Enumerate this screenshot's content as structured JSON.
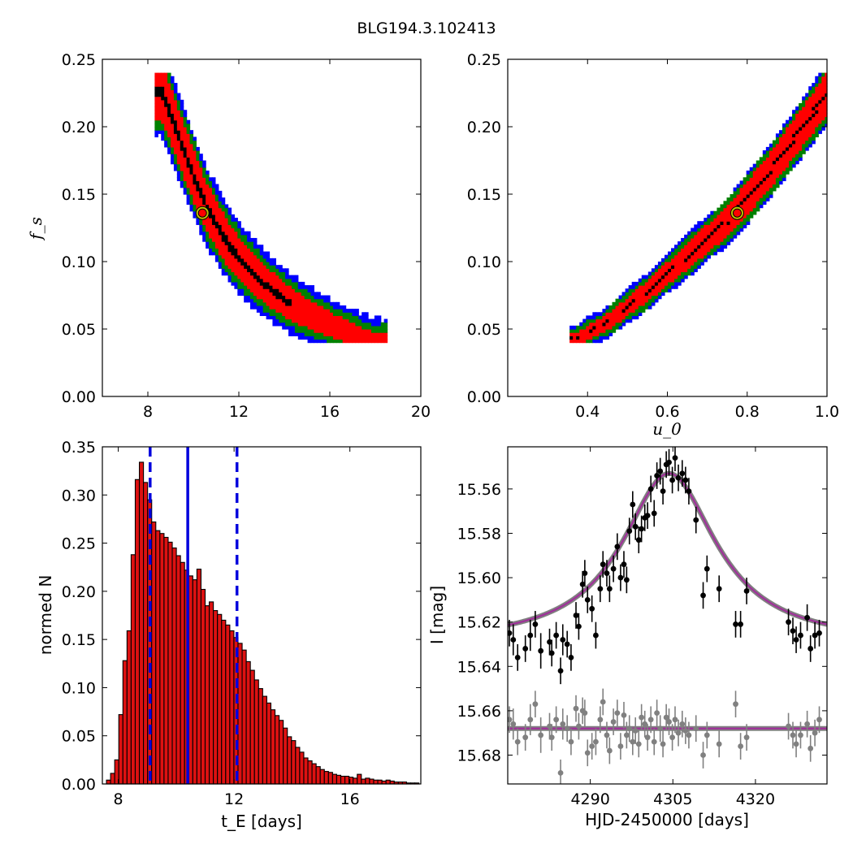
{
  "figure": {
    "title": "BLG194.3.102413"
  },
  "colors": {
    "sigma1": "#000000",
    "sigma2": "#ff0000",
    "sigma3": "#008000",
    "sigma4": "#0000ff",
    "best_fit_marker_edge": "#bfbf00",
    "hist_bar": "#dd1111",
    "hist_lines": "#0000dd",
    "model": "#a0309a",
    "model_band": "#808080",
    "data": "#000000",
    "residuals": "#808080"
  },
  "chart_data": [
    {
      "id": "fs-vs-tE",
      "type": "heatmap",
      "xlim": [
        6,
        20
      ],
      "ylim": [
        0.0,
        0.25
      ],
      "xticks": [
        "8",
        "12",
        "16",
        "20"
      ],
      "yticks": [
        "0.00",
        "0.05",
        "0.10",
        "0.15",
        "0.20",
        "0.25"
      ],
      "xlabel": "",
      "ylabel": "f_s",
      "ridge": {
        "x": [
          8.55,
          9.0,
          9.5,
          10.0,
          10.5,
          11.0,
          11.5,
          12.0,
          13.0,
          14.0,
          15.0,
          16.0,
          17.0,
          17.8
        ],
        "y": [
          0.225,
          0.205,
          0.182,
          0.16,
          0.14,
          0.125,
          0.111,
          0.1,
          0.083,
          0.07,
          0.06,
          0.052,
          0.045,
          0.041
        ]
      },
      "best_fit": {
        "x": 10.4,
        "y": 0.136
      }
    },
    {
      "id": "fs-vs-u0",
      "type": "heatmap",
      "xlim": [
        0.2,
        1.0
      ],
      "ylim": [
        0.0,
        0.25
      ],
      "xticks": [
        "0.4",
        "0.6",
        "0.8",
        "1.0"
      ],
      "yticks": [
        "0.00",
        "0.05",
        "0.10",
        "0.15",
        "0.20",
        "0.25"
      ],
      "xlabel": "u_0",
      "ylabel": "",
      "ridge": {
        "x": [
          0.37,
          0.45,
          0.55,
          0.65,
          0.75,
          0.85,
          0.92,
          1.0
        ],
        "y": [
          0.042,
          0.055,
          0.078,
          0.104,
          0.13,
          0.165,
          0.193,
          0.225
        ]
      },
      "best_fit": {
        "x": 0.775,
        "y": 0.136
      }
    },
    {
      "id": "tE-histogram",
      "type": "bar",
      "xlim": [
        7.45,
        18.45
      ],
      "ylim": [
        0.0,
        0.35
      ],
      "xticks": [
        "8",
        "12",
        "16"
      ],
      "yticks": [
        "0.00",
        "0.05",
        "0.10",
        "0.15",
        "0.20",
        "0.25",
        "0.30",
        "0.35"
      ],
      "xlabel": "t_E  [days]",
      "ylabel": "normed N",
      "bin_start": 7.45,
      "bin_width": 0.142,
      "values": [
        0.0,
        0.004,
        0.011,
        0.025,
        0.072,
        0.128,
        0.159,
        0.238,
        0.316,
        0.334,
        0.313,
        0.295,
        0.272,
        0.263,
        0.26,
        0.256,
        0.251,
        0.245,
        0.237,
        0.23,
        0.222,
        0.216,
        0.212,
        0.223,
        0.202,
        0.185,
        0.189,
        0.18,
        0.176,
        0.17,
        0.165,
        0.159,
        0.152,
        0.146,
        0.139,
        0.127,
        0.118,
        0.108,
        0.099,
        0.091,
        0.084,
        0.077,
        0.071,
        0.066,
        0.058,
        0.049,
        0.045,
        0.038,
        0.033,
        0.027,
        0.024,
        0.021,
        0.018,
        0.015,
        0.013,
        0.012,
        0.01,
        0.009,
        0.008,
        0.008,
        0.007,
        0.006,
        0.01,
        0.005,
        0.006,
        0.005,
        0.004,
        0.004,
        0.003,
        0.004,
        0.003,
        0.002,
        0.002,
        0.002,
        0.001,
        0.001,
        0.001
      ],
      "median": 10.4,
      "lower": 9.1,
      "upper": 12.1
    },
    {
      "id": "light-curve",
      "type": "scatter",
      "xlim": [
        4275,
        4333
      ],
      "ylim": [
        15.693,
        15.541
      ],
      "y_inverted": true,
      "xticks": [
        "4290",
        "4305",
        "4320"
      ],
      "yticks": [
        "15.56",
        "15.58",
        "15.60",
        "15.62",
        "15.64",
        "15.66",
        "15.68"
      ],
      "xlabel": "HJD-2450000 [days]",
      "ylabel": "I [mag]",
      "model": {
        "baseline": 15.63,
        "peak": 15.553,
        "t0": 4304.3,
        "tau": 10.4
      },
      "residual_offset": 15.668,
      "series": [
        {
          "name": "",
          "points": [
            [
              4275.3,
              15.625,
              0.006
            ],
            [
              4276.0,
              15.628,
              0.007
            ],
            [
              4276.8,
              15.636,
              0.006
            ],
            [
              4278.2,
              15.632,
              0.006
            ],
            [
              4279.1,
              15.626,
              0.007
            ],
            [
              4280.0,
              15.621,
              0.006
            ],
            [
              4281.0,
              15.633,
              0.008
            ],
            [
              4282.6,
              15.629,
              0.006
            ],
            [
              4283.0,
              15.634,
              0.006
            ],
            [
              4283.8,
              15.626,
              0.006
            ],
            [
              4284.6,
              15.642,
              0.006
            ],
            [
              4285.0,
              15.628,
              0.007
            ],
            [
              4285.8,
              15.63,
              0.006
            ],
            [
              4286.5,
              15.636,
              0.006
            ],
            [
              4287.4,
              15.617,
              0.006
            ],
            [
              4287.9,
              15.622,
              0.006
            ],
            [
              4288.6,
              15.603,
              0.006
            ],
            [
              4289.0,
              15.598,
              0.006
            ],
            [
              4289.5,
              15.61,
              0.006
            ],
            [
              4290.3,
              15.614,
              0.006
            ],
            [
              4291.0,
              15.626,
              0.006
            ],
            [
              4291.8,
              15.605,
              0.006
            ],
            [
              4292.3,
              15.594,
              0.006
            ],
            [
              4293.0,
              15.598,
              0.006
            ],
            [
              4293.5,
              15.605,
              0.006
            ],
            [
              4294.2,
              15.596,
              0.006
            ],
            [
              4294.9,
              15.586,
              0.006
            ],
            [
              4295.5,
              15.6,
              0.006
            ],
            [
              4296.1,
              15.594,
              0.006
            ],
            [
              4296.6,
              15.601,
              0.006
            ],
            [
              4297.1,
              15.579,
              0.006
            ],
            [
              4297.7,
              15.567,
              0.006
            ],
            [
              4298.2,
              15.577,
              0.006
            ],
            [
              4298.8,
              15.583,
              0.006
            ],
            [
              4299.3,
              15.578,
              0.006
            ],
            [
              4299.9,
              15.573,
              0.006
            ],
            [
              4300.4,
              15.572,
              0.006
            ],
            [
              4301.0,
              15.56,
              0.006
            ],
            [
              4301.6,
              15.571,
              0.006
            ],
            [
              4302.1,
              15.554,
              0.006
            ],
            [
              4302.7,
              15.552,
              0.006
            ],
            [
              4303.2,
              15.561,
              0.006
            ],
            [
              4303.8,
              15.549,
              0.006
            ],
            [
              4304.3,
              15.548,
              0.006
            ],
            [
              4304.9,
              15.556,
              0.006
            ],
            [
              4305.4,
              15.546,
              0.006
            ],
            [
              4306.0,
              15.555,
              0.006
            ],
            [
              4306.7,
              15.553,
              0.006
            ],
            [
              4307.3,
              15.556,
              0.006
            ],
            [
              4307.9,
              15.561,
              0.006
            ],
            [
              4309.2,
              15.574,
              0.006
            ],
            [
              4310.5,
              15.608,
              0.006
            ],
            [
              4311.2,
              15.596,
              0.006
            ],
            [
              4313.4,
              15.605,
              0.006
            ],
            [
              4316.4,
              15.621,
              0.006
            ],
            [
              4317.3,
              15.621,
              0.006
            ],
            [
              4318.4,
              15.606,
              0.006
            ],
            [
              4326.0,
              15.62,
              0.006
            ],
            [
              4326.8,
              15.624,
              0.006
            ],
            [
              4327.4,
              15.628,
              0.006
            ],
            [
              4328.2,
              15.626,
              0.006
            ],
            [
              4329.4,
              15.618,
              0.006
            ],
            [
              4330.0,
              15.632,
              0.006
            ],
            [
              4330.8,
              15.626,
              0.006
            ],
            [
              4331.6,
              15.625,
              0.006
            ]
          ]
        },
        {
          "name": "",
          "points": [
            [
              4275.3,
              15.664,
              0.006
            ],
            [
              4276.0,
              15.666,
              0.007
            ],
            [
              4276.8,
              15.674,
              0.006
            ],
            [
              4278.2,
              15.672,
              0.006
            ],
            [
              4279.1,
              15.664,
              0.007
            ],
            [
              4280.0,
              15.657,
              0.006
            ],
            [
              4281.0,
              15.671,
              0.008
            ],
            [
              4282.6,
              15.667,
              0.006
            ],
            [
              4283.0,
              15.672,
              0.006
            ],
            [
              4283.8,
              15.664,
              0.006
            ],
            [
              4284.6,
              15.688,
              0.006
            ],
            [
              4285.0,
              15.666,
              0.007
            ],
            [
              4285.8,
              15.668,
              0.006
            ],
            [
              4286.5,
              15.674,
              0.006
            ],
            [
              4287.4,
              15.659,
              0.006
            ],
            [
              4287.9,
              15.667,
              0.006
            ],
            [
              4288.6,
              15.66,
              0.006
            ],
            [
              4289.0,
              15.661,
              0.006
            ],
            [
              4289.5,
              15.679,
              0.006
            ],
            [
              4290.3,
              15.676,
              0.006
            ],
            [
              4291.0,
              15.674,
              0.006
            ],
            [
              4291.8,
              15.664,
              0.006
            ],
            [
              4292.3,
              15.656,
              0.006
            ],
            [
              4293.0,
              15.671,
              0.006
            ],
            [
              4293.5,
              15.678,
              0.006
            ],
            [
              4294.2,
              15.665,
              0.006
            ],
            [
              4294.9,
              15.661,
              0.006
            ],
            [
              4295.5,
              15.676,
              0.006
            ],
            [
              4296.1,
              15.662,
              0.006
            ],
            [
              4296.6,
              15.671,
              0.006
            ],
            [
              4297.1,
              15.668,
              0.006
            ],
            [
              4297.7,
              15.674,
              0.006
            ],
            [
              4298.2,
              15.669,
              0.006
            ],
            [
              4298.8,
              15.675,
              0.006
            ],
            [
              4299.3,
              15.663,
              0.006
            ],
            [
              4299.9,
              15.666,
              0.006
            ],
            [
              4300.4,
              15.672,
              0.006
            ],
            [
              4301.0,
              15.664,
              0.006
            ],
            [
              4301.6,
              15.674,
              0.006
            ],
            [
              4302.1,
              15.661,
              0.006
            ],
            [
              4302.7,
              15.668,
              0.006
            ],
            [
              4303.2,
              15.675,
              0.006
            ],
            [
              4303.8,
              15.663,
              0.006
            ],
            [
              4304.3,
              15.665,
              0.006
            ],
            [
              4304.9,
              15.672,
              0.006
            ],
            [
              4305.4,
              15.664,
              0.006
            ],
            [
              4306.0,
              15.67,
              0.006
            ],
            [
              4306.7,
              15.666,
              0.006
            ],
            [
              4307.3,
              15.669,
              0.006
            ],
            [
              4307.9,
              15.671,
              0.006
            ],
            [
              4309.2,
              15.668,
              0.006
            ],
            [
              4310.5,
              15.68,
              0.006
            ],
            [
              4311.2,
              15.671,
              0.006
            ],
            [
              4313.4,
              15.675,
              0.006
            ],
            [
              4316.4,
              15.657,
              0.006
            ],
            [
              4317.3,
              15.676,
              0.006
            ],
            [
              4318.4,
              15.672,
              0.006
            ],
            [
              4326.0,
              15.667,
              0.006
            ],
            [
              4326.8,
              15.671,
              0.006
            ],
            [
              4327.4,
              15.675,
              0.006
            ],
            [
              4328.2,
              15.671,
              0.006
            ],
            [
              4329.4,
              15.666,
              0.006
            ],
            [
              4330.0,
              15.677,
              0.006
            ],
            [
              4330.8,
              15.67,
              0.006
            ],
            [
              4331.6,
              15.664,
              0.006
            ]
          ]
        }
      ]
    }
  ]
}
